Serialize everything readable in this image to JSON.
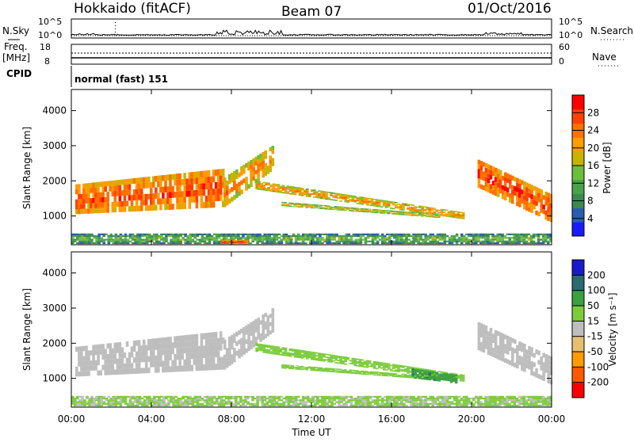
{
  "header": {
    "radar": "Hokkaido (fitACF)",
    "beam": "Beam 07",
    "date": "01/Oct/2016"
  },
  "colors": {
    "power_scale": [
      "#1a1aff",
      "#2a5db0",
      "#3a8a50",
      "#4aa24a",
      "#6bbf3a",
      "#c8b400",
      "#ff9c00",
      "#ff7000",
      "#ff4000",
      "#ff0000"
    ],
    "velocity_scale": [
      "#ff0000",
      "#ff5a00",
      "#ff9a00",
      "#e6c070",
      "#bebebe",
      "#bebebe",
      "#7ccc3c",
      "#3aa040",
      "#2a6a70",
      "#1a3aa0",
      "#1a1acc"
    ]
  },
  "status_panels": {
    "nsky": {
      "left_label": "N.Sky",
      "tick_hi": "10^5",
      "tick_lo": "10^0",
      "right_label": "N.Search",
      "right_tick_hi": "10^5",
      "right_tick_lo": "10^0"
    },
    "freq": {
      "left_label_1": "Freq.",
      "left_label_2": "[MHz]",
      "tick_hi": "18",
      "tick_lo": "8",
      "right_label": "Nave",
      "right_tick_hi": "60",
      "right_tick_lo": "0"
    },
    "cpid": {
      "label": "CPID",
      "text": "normal (fast) 151"
    }
  },
  "chart_data": [
    {
      "type": "heatmap",
      "name": "power",
      "ylabel": "Slant Range [km]",
      "yticks": [
        "1000",
        "2000",
        "3000",
        "4000"
      ],
      "ylim": [
        180,
        4600
      ],
      "colorbar_label": "Power [dB]",
      "colorbar_ticks": [
        "4",
        "8",
        "12",
        "16",
        "20",
        "24",
        "28"
      ],
      "x_hours": [
        0,
        24
      ],
      "echo_bands": [
        {
          "t0": 0.2,
          "t1": 7.6,
          "r0_start": 1050,
          "r1_start": 1900,
          "r0_end": 1250,
          "r1_end": 2350,
          "level": 27
        },
        {
          "t0": 7.6,
          "t1": 10.0,
          "r0_start": 1250,
          "r1_start": 2100,
          "r0_end": 2300,
          "r1_end": 3000,
          "level": 24
        },
        {
          "t0": 9.2,
          "t1": 19.6,
          "r0_start": 1750,
          "r1_start": 2000,
          "r0_end": 900,
          "r1_end": 1100,
          "level": 23
        },
        {
          "t0": 10.5,
          "t1": 18.3,
          "r0_start": 1280,
          "r1_start": 1400,
          "r0_end": 950,
          "r1_end": 1050,
          "level": 20
        },
        {
          "t0": 20.3,
          "t1": 24.0,
          "r0_start": 1800,
          "r1_start": 2600,
          "r0_end": 800,
          "r1_end": 1600,
          "level": 28
        },
        {
          "t0": 0.0,
          "t1": 24.0,
          "r0_start": 200,
          "r1_start": 500,
          "r0_end": 200,
          "r1_end": 500,
          "level": 14
        },
        {
          "t0": 7.5,
          "t1": 8.8,
          "r0_start": 200,
          "r1_start": 320,
          "r0_end": 200,
          "r1_end": 320,
          "level": 28
        }
      ]
    },
    {
      "type": "heatmap",
      "name": "velocity",
      "ylabel": "Slant Range [km]",
      "yticks": [
        "1000",
        "2000",
        "3000",
        "4000"
      ],
      "ylim": [
        180,
        4600
      ],
      "colorbar_label": "Velocity [m s⁻¹]",
      "colorbar_ticks": [
        "-200",
        "-100",
        "-50",
        "-15",
        "15",
        "50",
        "100",
        "200"
      ],
      "xticks": [
        "00:00",
        "04:00",
        "08:00",
        "12:00",
        "16:00",
        "20:00",
        "00:00"
      ],
      "xlabel": "Time UT",
      "echo_bands": [
        {
          "t0": 0.2,
          "t1": 7.6,
          "r0_start": 1050,
          "r1_start": 1900,
          "r0_end": 1250,
          "r1_end": 2350,
          "vel": 0
        },
        {
          "t0": 7.6,
          "t1": 10.0,
          "r0_start": 1250,
          "r1_start": 2100,
          "r0_end": 2300,
          "r1_end": 3000,
          "vel": 0
        },
        {
          "t0": 9.2,
          "t1": 19.6,
          "r0_start": 1750,
          "r1_start": 2000,
          "r0_end": 900,
          "r1_end": 1100,
          "vel": 30
        },
        {
          "t0": 10.5,
          "t1": 18.3,
          "r0_start": 1280,
          "r1_start": 1400,
          "r0_end": 950,
          "r1_end": 1050,
          "vel": 30
        },
        {
          "t0": 17.0,
          "t1": 19.2,
          "r0_start": 1000,
          "r1_start": 1280,
          "r0_end": 850,
          "r1_end": 1100,
          "vel": 90
        },
        {
          "t0": 20.3,
          "t1": 24.0,
          "r0_start": 1800,
          "r1_start": 2600,
          "r0_end": 800,
          "r1_end": 1600,
          "vel": 0
        },
        {
          "t0": 0.0,
          "t1": 24.0,
          "r0_start": 200,
          "r1_start": 500,
          "r0_end": 200,
          "r1_end": 500,
          "vel": 20
        }
      ]
    }
  ]
}
